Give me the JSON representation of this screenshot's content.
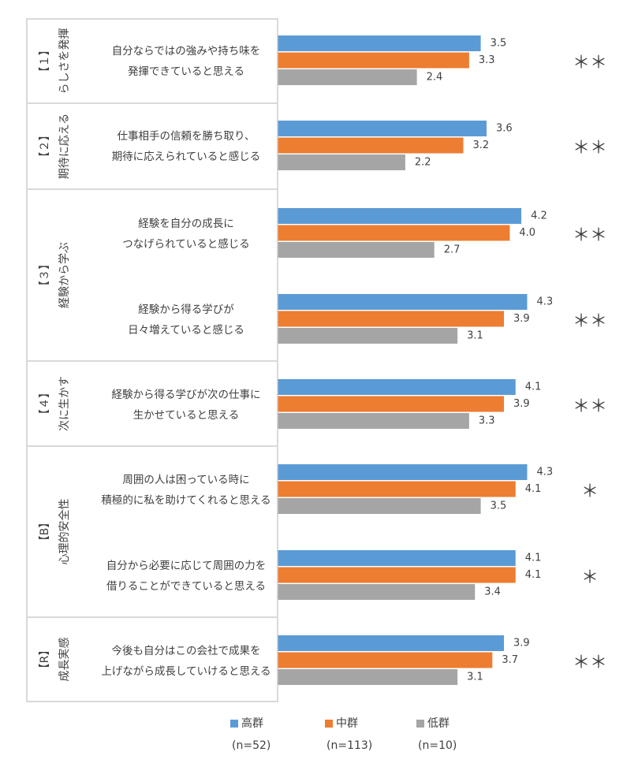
{
  "chart_data": {
    "type": "bar",
    "orientation": "horizontal",
    "colors": {
      "高群": "#5b9bd5",
      "中群": "#ed7d31",
      "低群": "#a5a5a5"
    },
    "grid": false,
    "legend_position": "bottom",
    "groups": [
      {
        "bracket": "【１】",
        "name": "らしさを発揮"
      },
      {
        "bracket": "【２】",
        "name": "期待に応える"
      },
      {
        "bracket": "【３】",
        "name": "経験から学ぶ"
      },
      {
        "bracket": "【４】",
        "name": "次に生かす"
      },
      {
        "bracket": "【B】",
        "name": "心理的安全性"
      },
      {
        "bracket": "【R】",
        "name": "成長実感"
      }
    ],
    "items": [
      {
        "group": 0,
        "lines": [
          "自分ならではの強みや持ち味を",
          "発揮できていると思える"
        ],
        "values": [
          3.5,
          3.3,
          2.4
        ],
        "labels": [
          "3.5",
          "3.3",
          "2.4"
        ],
        "significance": "＊＊"
      },
      {
        "group": 1,
        "lines": [
          "仕事相手の信頼を勝ち取り、",
          "期待に応えられていると感じる"
        ],
        "values": [
          3.6,
          3.2,
          2.2
        ],
        "labels": [
          "3.6",
          "3.2",
          "2.2"
        ],
        "significance": "＊＊"
      },
      {
        "group": 2,
        "lines": [
          "経験を自分の成長に",
          "つなげられていると感じる"
        ],
        "values": [
          4.2,
          4.0,
          2.7
        ],
        "labels": [
          "4.2",
          "4.0",
          "2.7"
        ],
        "significance": "＊＊"
      },
      {
        "group": 2,
        "lines": [
          "経験から得る学びが",
          "日々増えていると感じる"
        ],
        "values": [
          4.3,
          3.9,
          3.1
        ],
        "labels": [
          "4.3",
          "3.9",
          "3.1"
        ],
        "significance": "＊＊"
      },
      {
        "group": 3,
        "lines": [
          "経験から得る学びが次の仕事に",
          "生かせていると思える"
        ],
        "values": [
          4.1,
          3.9,
          3.3
        ],
        "labels": [
          "4.1",
          "3.9",
          "3.3"
        ],
        "significance": "＊＊"
      },
      {
        "group": 4,
        "lines": [
          "周囲の人は困っている時に",
          "積極的に私を助けてくれると思える"
        ],
        "values": [
          4.3,
          4.1,
          3.5
        ],
        "labels": [
          "4.3",
          "4.1",
          "3.5"
        ],
        "significance": "＊"
      },
      {
        "group": 4,
        "lines": [
          "自分から必要に応じて周囲の力を",
          "借りることができていると思える"
        ],
        "values": [
          4.1,
          4.1,
          3.4
        ],
        "labels": [
          "4.1",
          "4.1",
          "3.4"
        ],
        "significance": "＊"
      },
      {
        "group": 5,
        "lines": [
          "今後も自分はこの会社で成果を",
          "上げながら成長していけると思える"
        ],
        "values": [
          3.9,
          3.7,
          3.1
        ],
        "labels": [
          "3.9",
          "3.7",
          "3.1"
        ],
        "significance": "＊＊"
      }
    ],
    "series": [
      {
        "name": "高群",
        "n": "(n=52)",
        "values": [
          3.5,
          3.6,
          4.2,
          4.3,
          4.1,
          4.3,
          4.1,
          3.9
        ]
      },
      {
        "name": "中群",
        "n": "(n=113)",
        "values": [
          3.3,
          3.2,
          4.0,
          3.9,
          3.9,
          4.1,
          4.1,
          3.7
        ]
      },
      {
        "name": "低群",
        "n": "(n=10)",
        "values": [
          2.4,
          2.2,
          2.7,
          3.1,
          3.3,
          3.5,
          3.4,
          3.1
        ]
      }
    ]
  }
}
